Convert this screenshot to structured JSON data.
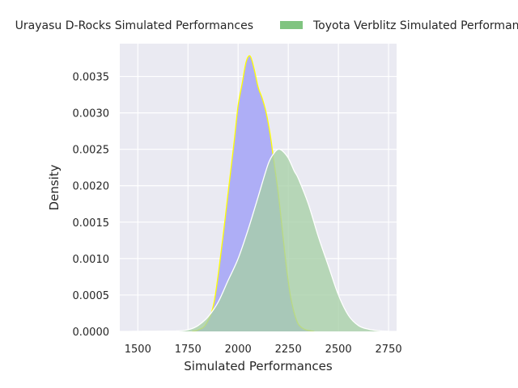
{
  "chart_data": {
    "type": "area",
    "title": "",
    "xlabel": "Simulated Performances",
    "ylabel": "Density",
    "xlim": [
      1410,
      2790
    ],
    "ylim": [
      0,
      0.00395
    ],
    "xticks": [
      1500,
      1750,
      2000,
      2250,
      2500,
      2750
    ],
    "xtick_labels": [
      "1500",
      "1750",
      "2000",
      "2250",
      "2500",
      "2750"
    ],
    "yticks": [
      0,
      0.0005,
      0.001,
      0.0015,
      0.002,
      0.0025,
      0.003,
      0.0035
    ],
    "ytick_labels": [
      "0.0000",
      "0.0005",
      "0.0010",
      "0.0015",
      "0.0020",
      "0.0025",
      "0.0030",
      "0.0035"
    ],
    "grid": true,
    "legend_position": "top",
    "legend": [
      {
        "label": "Urayasu D-Rocks Simulated Performances",
        "color": "#aeaef6"
      },
      {
        "label": "Toyota Verblitz Simulated Performances",
        "color": "#80c480"
      }
    ],
    "series": [
      {
        "name": "Urayasu D-Rocks Simulated Performances",
        "fill": "#aeaef6",
        "stroke": "#ffff00",
        "x": [
          1770,
          1800,
          1840,
          1880,
          1920,
          1950,
          1980,
          2000,
          2020,
          2040,
          2060,
          2080,
          2100,
          2120,
          2140,
          2160,
          2180,
          2200,
          2220,
          2240,
          2260,
          2280,
          2300,
          2330,
          2360,
          2380
        ],
        "y": [
          0,
          2e-05,
          0.0001,
          0.0004,
          0.0012,
          0.0019,
          0.0026,
          0.0031,
          0.0034,
          0.0037,
          0.00378,
          0.0036,
          0.00335,
          0.0032,
          0.003,
          0.0027,
          0.0023,
          0.0019,
          0.0014,
          0.0009,
          0.0005,
          0.00025,
          0.0001,
          3e-05,
          1e-05,
          0
        ]
      },
      {
        "name": "Toyota Verblitz Simulated Performances",
        "fill": "#a7cfa7",
        "stroke": "#ffffff",
        "x": [
          1460,
          1550,
          1650,
          1720,
          1760,
          1800,
          1850,
          1900,
          1950,
          2000,
          2050,
          2100,
          2150,
          2180,
          2200,
          2220,
          2250,
          2280,
          2300,
          2350,
          2400,
          2450,
          2500,
          2550,
          2600,
          2650,
          2700,
          2760
        ],
        "y": [
          0,
          2e-06,
          5e-06,
          1e-05,
          3e-05,
          8e-05,
          0.0002,
          0.0004,
          0.0007,
          0.001,
          0.0014,
          0.00185,
          0.0023,
          0.00245,
          0.0025,
          0.00248,
          0.00238,
          0.0022,
          0.0021,
          0.00175,
          0.0013,
          0.0009,
          0.0005,
          0.00022,
          8e-05,
          3e-05,
          1e-05,
          0
        ]
      }
    ]
  }
}
